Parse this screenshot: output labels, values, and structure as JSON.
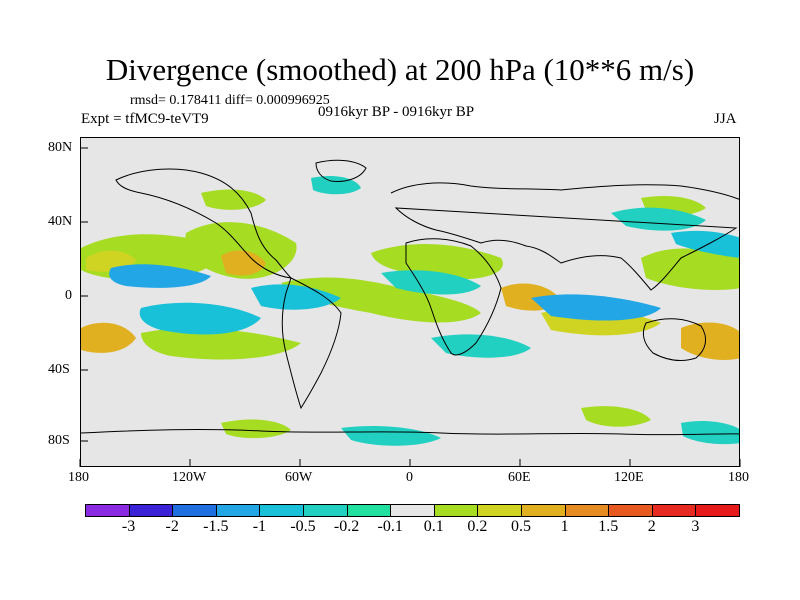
{
  "title": "Divergence (smoothed) at 200 hPa (10**6 m/s)",
  "stats": "rmsd= 0.178411 diff= 0.000996925",
  "experiment": "Expt = tfMC9-teVT9",
  "period": "0916kyr BP - 0916kyr BP",
  "season": "JJA",
  "y_ticks": [
    "80N",
    "40N",
    "0",
    "40S",
    "80S"
  ],
  "x_ticks": [
    "180",
    "120W",
    "60W",
    "0",
    "60E",
    "120E",
    "180"
  ],
  "colorbar": {
    "labels": [
      "-3",
      "-2",
      "-1.5",
      "-1",
      "-0.5",
      "-0.2",
      "-0.1",
      "0.1",
      "0.2",
      "0.5",
      "1",
      "1.5",
      "2",
      "3"
    ],
    "colors": [
      "#8a2be2",
      "#3b22d6",
      "#1f6fe0",
      "#22a6e6",
      "#18c0d8",
      "#22d0c2",
      "#22e0a0",
      "#e6e6e6",
      "#a6dc22",
      "#cfd422",
      "#e0b020",
      "#e68a22",
      "#e65a22",
      "#e62a22",
      "#e61a1a"
    ]
  }
}
